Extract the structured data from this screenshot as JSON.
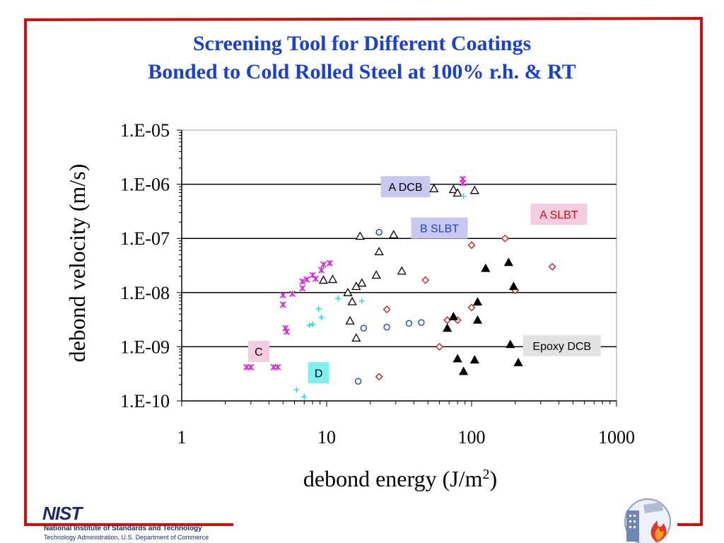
{
  "slide": {
    "title_line1": "Screening Tool for Different Coatings",
    "title_line2": "Bonded to Cold Rolled Steel at 100% r.h. & RT"
  },
  "footer": {
    "logo_word": "NIST",
    "org_name": "National Institute of Standards and Technology",
    "org_admin": "Technology Administration, U.S. Department of Commerce"
  },
  "colors": {
    "frame": "#cc1111",
    "title": "#1a3fd6"
  },
  "chart_data": {
    "type": "scatter",
    "title": "",
    "xlabel": "debond energy (J/m",
    "xlabel_sup": "2",
    "xlabel_end": ")",
    "ylabel": "debond velocity (m/s)",
    "x_scale": "log",
    "y_scale": "log",
    "xlim": [
      1,
      1000
    ],
    "ylim": [
      1e-10,
      1e-05
    ],
    "x_ticks": [
      1,
      10,
      100,
      1000
    ],
    "x_tick_labels": [
      "1",
      "10",
      "100",
      "1000"
    ],
    "y_ticks": [
      1e-10,
      1e-09,
      1e-08,
      1e-07,
      1e-06,
      1e-05
    ],
    "y_tick_labels": [
      "1.E-10",
      "1.E-09",
      "1.E-08",
      "1.E-07",
      "1.E-06",
      "1.E-05"
    ],
    "gridlines_y": [
      1e-09,
      1e-08,
      1e-07,
      1e-06
    ],
    "series": [
      {
        "name": "A DCB",
        "marker": "open-triangle",
        "color": "#000000",
        "label_bg": "#c8c8f0",
        "points": [
          [
            55,
            8.3e-07
          ],
          [
            75,
            8e-07
          ],
          [
            80,
            6.9e-07
          ],
          [
            105,
            7.7e-07
          ],
          [
            17,
            1.1e-07
          ],
          [
            29,
            1.17e-07
          ],
          [
            23,
            5.7e-08
          ],
          [
            33,
            2.5e-08
          ],
          [
            22,
            2.1e-08
          ],
          [
            11,
            1.75e-08
          ],
          [
            9.5,
            1.7e-08
          ],
          [
            17.5,
            1.5e-08
          ],
          [
            16,
            1.3e-08
          ],
          [
            14,
            1e-08
          ],
          [
            15,
            6.8e-09
          ],
          [
            14.5,
            3e-09
          ],
          [
            16,
            1.45e-09
          ]
        ]
      },
      {
        "name": "A SLBT",
        "marker": "open-diamond",
        "color": "#cc1111",
        "label_bg": "#f6cce0",
        "points": [
          [
            170,
            1e-07
          ],
          [
            100,
            7.5e-08
          ],
          [
            360,
            3e-08
          ],
          [
            48,
            1.7e-08
          ],
          [
            200,
            1.1e-08
          ],
          [
            26,
            4.9e-09
          ],
          [
            100,
            5.3e-09
          ],
          [
            68,
            3.1e-09
          ],
          [
            80,
            3.1e-09
          ],
          [
            60,
            1e-09
          ],
          [
            23,
            2.8e-10
          ]
        ]
      },
      {
        "name": "B SLBT",
        "marker": "open-circle",
        "color": "#1a3fd6",
        "label_bg": "#c8c8f0",
        "points": [
          [
            23,
            1.3e-07
          ],
          [
            45,
            2.8e-09
          ],
          [
            37,
            2.7e-09
          ],
          [
            26,
            2.3e-09
          ],
          [
            18,
            2.2e-09
          ],
          [
            16.5,
            2.3e-10
          ]
        ]
      },
      {
        "name": "Epoxy DCB",
        "marker": "filled-triangle",
        "color": "#000000",
        "label_bg": "#e2e2e2",
        "points": [
          [
            180,
            3.6e-08
          ],
          [
            125,
            2.8e-08
          ],
          [
            195,
            1.3e-08
          ],
          [
            110,
            6.7e-09
          ],
          [
            75,
            3.6e-09
          ],
          [
            110,
            3.1e-09
          ],
          [
            68,
            2.2e-09
          ],
          [
            185,
            1.1e-09
          ],
          [
            80,
            6e-10
          ],
          [
            105,
            5.7e-10
          ],
          [
            210,
            5.1e-10
          ],
          [
            88,
            3.5e-10
          ]
        ]
      },
      {
        "name": "C",
        "marker": "asterisk",
        "color": "#dd22dd",
        "label_bg": "#f6cce0",
        "points": [
          [
            87,
            1.25e-06
          ],
          [
            87,
            1.05e-06
          ],
          [
            10.5,
            3.5e-08
          ],
          [
            9.5,
            3.3e-08
          ],
          [
            9.2,
            2.6e-08
          ],
          [
            8,
            2.1e-08
          ],
          [
            7.3,
            1.75e-08
          ],
          [
            6.8,
            1.6e-08
          ],
          [
            8.4,
            1.8e-08
          ],
          [
            6.8,
            1.2e-08
          ],
          [
            5,
            9e-09
          ],
          [
            5.8,
            9.5e-09
          ],
          [
            5,
            6e-09
          ],
          [
            5.2,
            2.2e-09
          ],
          [
            5.3,
            1.9e-09
          ],
          [
            2.8,
            4.2e-10
          ],
          [
            3.0,
            4.2e-10
          ],
          [
            4.3,
            4.2e-10
          ],
          [
            4.6,
            4.2e-10
          ]
        ]
      },
      {
        "name": "D",
        "marker": "plus",
        "color": "#11e0e0",
        "label_bg": "#7ff0f0",
        "points": [
          [
            88,
            6e-07
          ],
          [
            12,
            7.8e-09
          ],
          [
            17.5,
            7e-09
          ],
          [
            8.8,
            5e-09
          ],
          [
            9.2,
            3.5e-09
          ],
          [
            8,
            2.6e-09
          ],
          [
            7.6,
            2.5e-09
          ],
          [
            6.2,
            1.6e-10
          ],
          [
            7,
            1.2e-10
          ]
        ]
      }
    ],
    "annotations": [
      {
        "text": "A DCB",
        "series": "A DCB",
        "x": 35,
        "y": 9e-07,
        "text_color": "#000000"
      },
      {
        "text": "A SLBT",
        "series": "A SLBT",
        "x": 400,
        "y": 2.8e-07,
        "text_color": "#cc1111"
      },
      {
        "text": "B SLBT",
        "series": "B SLBT",
        "x": 60,
        "y": 1.55e-07,
        "text_color": "#1a3fd6"
      },
      {
        "text": "Epoxy DCB",
        "series": "Epoxy DCB",
        "x": 420,
        "y": 1.05e-09,
        "text_color": "#000000"
      },
      {
        "text": "C",
        "series": "C",
        "x": 3.4,
        "y": 8.2e-10,
        "text_color": "#000000"
      },
      {
        "text": "D",
        "series": "D",
        "x": 8.8,
        "y": 3.3e-10,
        "text_color": "#000000"
      }
    ]
  }
}
